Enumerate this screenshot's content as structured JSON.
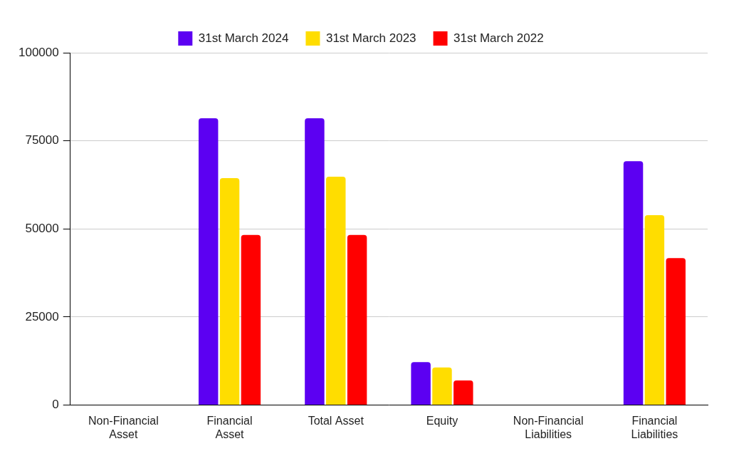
{
  "chart_data": {
    "type": "bar",
    "categories": [
      "Non-Financial Asset",
      "Financial Asset",
      "Total Asset",
      "Equity",
      "Non-Financial Liabilities",
      "Financial Liabilities"
    ],
    "series": [
      {
        "name": "31st March 2024",
        "color": "#5c00f2",
        "values": [
          0,
          81400,
          81400,
          12200,
          0,
          69200
        ]
      },
      {
        "name": "31st March 2023",
        "color": "#ffdd00",
        "values": [
          0,
          64400,
          64800,
          10700,
          0,
          53900
        ]
      },
      {
        "name": "31st March 2022",
        "color": "#ff0000",
        "values": [
          0,
          48300,
          48300,
          7000,
          0,
          41700
        ]
      }
    ],
    "ylim": [
      0,
      100000
    ],
    "yticks": [
      0,
      25000,
      50000,
      75000,
      100000
    ],
    "grid": true,
    "legend": "top"
  }
}
